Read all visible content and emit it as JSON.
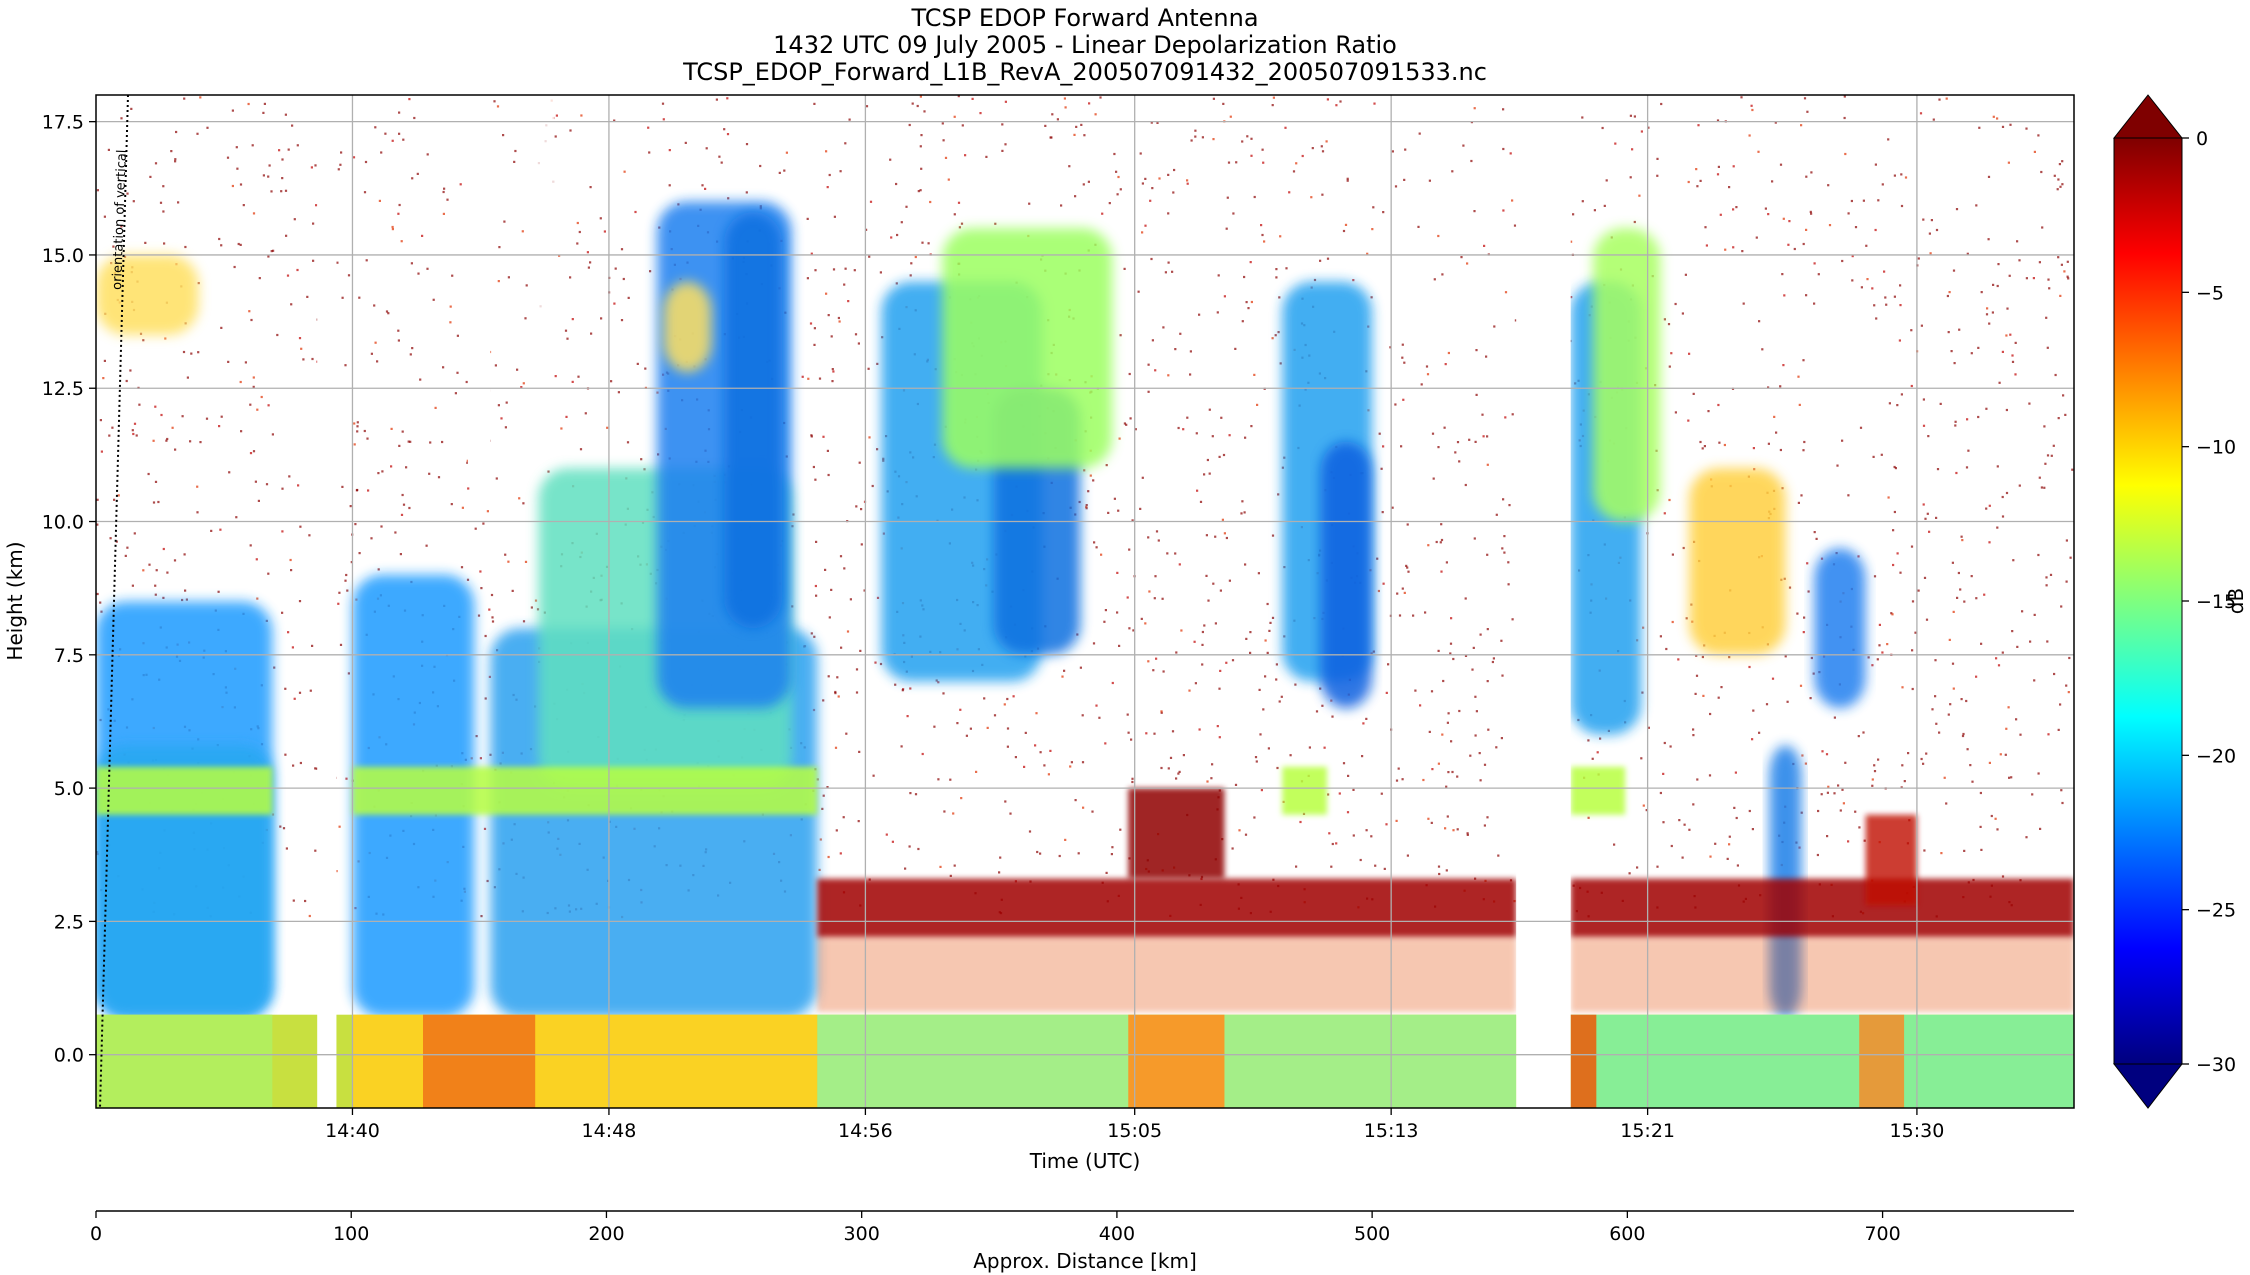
{
  "chart_data": {
    "type": "heatmap",
    "title": [
      "TCSP EDOP Forward Antenna",
      "1432 UTC 09 July 2005 - Linear Depolarization Ratio",
      "TCSP_EDOP_Forward_L1B_RevA_200507091432_200507091533.nc"
    ],
    "xlabel": "Time (UTC)",
    "ylabel": "Height (km)",
    "x2label": "Approx. Distance [km]",
    "annotation": "orientation of vertical",
    "x_ticks": [
      "14:40",
      "14:48",
      "14:56",
      "15:05",
      "15:13",
      "15:21",
      "15:30"
    ],
    "x_tick_positions_min": [
      6.8,
      14.8,
      22.8,
      31.2,
      39.2,
      47.2,
      55.6
    ],
    "x_range_min": [
      -1.2,
      60.5
    ],
    "y_ticks": [
      "0.0",
      "2.5",
      "5.0",
      "7.5",
      "10.0",
      "12.5",
      "15.0",
      "17.5"
    ],
    "y_tick_values": [
      0,
      2.5,
      5,
      7.5,
      10,
      12.5,
      15,
      17.5
    ],
    "ylim": [
      -1,
      18
    ],
    "x2_ticks": [
      "0",
      "100",
      "200",
      "300",
      "400",
      "500",
      "600",
      "700"
    ],
    "x2_tick_values": [
      0,
      100,
      200,
      300,
      400,
      500,
      600,
      700
    ],
    "x2lim": [
      0,
      775
    ],
    "colorbar": {
      "label": "dB",
      "ticks": [
        "0",
        "−5",
        "−10",
        "−15",
        "−20",
        "−25",
        "−30"
      ],
      "tick_values": [
        0,
        -5,
        -10,
        -15,
        -20,
        -25,
        -30
      ],
      "range": [
        -30,
        0
      ],
      "colormap": "jet",
      "extend": "both",
      "colors": [
        "#00007f",
        "#0000ff",
        "#007fff",
        "#00ffff",
        "#7fff7f",
        "#ffff00",
        "#ff7f00",
        "#ff0000",
        "#7f0000"
      ]
    },
    "data_gaps_min": [
      [
        5.7,
        6.3
      ],
      [
        43.1,
        44.8
      ]
    ],
    "grid": true
  }
}
